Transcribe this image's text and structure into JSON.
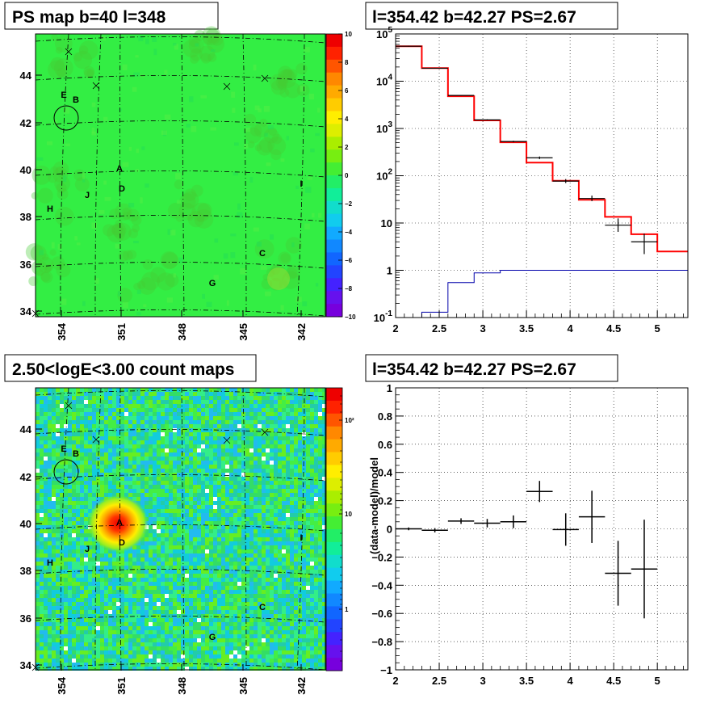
{
  "chart_data": [
    {
      "type": "heatmap",
      "title": "PS map b=40 l=348",
      "x_ticks": [
        "354",
        "351",
        "348",
        "345",
        "342"
      ],
      "y_ticks": [
        "34",
        "36",
        "38",
        "40",
        "42",
        "44"
      ],
      "colorbar": {
        "ticks": [
          "10",
          "8",
          "6",
          "4",
          "2",
          "0",
          "−2",
          "−4",
          "−6",
          "−8",
          "−10"
        ],
        "range": [
          -10,
          10
        ]
      },
      "source_labels": [
        "A",
        "B",
        "C",
        "D",
        "E",
        "G",
        "H",
        "I",
        "J"
      ]
    },
    {
      "type": "line",
      "title": "l=354.42 b=42.27 PS=2.67",
      "y_scale": "log",
      "xlim": [
        2,
        5.35
      ],
      "ylim": [
        0.1,
        100000
      ],
      "x_ticks": [
        "2",
        "2.5",
        "3",
        "3.5",
        "4",
        "4.5",
        "5"
      ],
      "y_ticks": [
        "10^-1",
        "1",
        "10",
        "10^2",
        "10^3",
        "10^4",
        "10^5"
      ],
      "series": [
        {
          "color": "#ff0000",
          "edges": [
            2,
            2.3,
            2.6,
            2.9,
            3.2,
            3.5,
            3.8,
            4.1,
            4.4,
            4.7,
            5.0,
            5.35
          ],
          "values": [
            55000,
            19000,
            4800,
            1480,
            510,
            190,
            78,
            31,
            13.5,
            5.8,
            2.5
          ]
        },
        {
          "color": "#0000aa",
          "edges": [
            2,
            2.3,
            2.6,
            2.9,
            3.2,
            3.5,
            3.8,
            4.1,
            4.4,
            4.7,
            5.0,
            5.35
          ],
          "values": [
            0.1,
            0.13,
            0.55,
            0.88,
            1.0,
            1.0,
            1.0,
            1.0,
            1.0,
            1.0,
            1.0
          ]
        }
      ],
      "data_points": [
        {
          "x": 2.15,
          "xerr": 0.15,
          "y": 55000,
          "ylo": 54000,
          "yhi": 56000
        },
        {
          "x": 2.45,
          "xerr": 0.15,
          "y": 18800,
          "ylo": 18500,
          "yhi": 19200
        },
        {
          "x": 2.75,
          "xerr": 0.15,
          "y": 5000,
          "ylo": 4900,
          "yhi": 5100
        },
        {
          "x": 3.05,
          "xerr": 0.15,
          "y": 1520,
          "ylo": 1480,
          "yhi": 1560
        },
        {
          "x": 3.35,
          "xerr": 0.15,
          "y": 530,
          "ylo": 510,
          "yhi": 550
        },
        {
          "x": 3.65,
          "xerr": 0.15,
          "y": 240,
          "ylo": 225,
          "yhi": 255
        },
        {
          "x": 3.95,
          "xerr": 0.15,
          "y": 77,
          "ylo": 70,
          "yhi": 85
        },
        {
          "x": 4.25,
          "xerr": 0.15,
          "y": 33,
          "ylo": 29,
          "yhi": 38
        },
        {
          "x": 4.55,
          "xerr": 0.15,
          "y": 9,
          "ylo": 6.5,
          "yhi": 12.5
        },
        {
          "x": 4.85,
          "xerr": 0.15,
          "y": 4,
          "ylo": 2.2,
          "yhi": 6
        }
      ]
    },
    {
      "type": "heatmap",
      "title": "2.50<logE<3.00 count maps",
      "x_ticks": [
        "354",
        "351",
        "348",
        "345",
        "342"
      ],
      "y_ticks": [
        "34",
        "36",
        "38",
        "40",
        "42",
        "44"
      ],
      "colorbar": {
        "ticks": [
          "10^2",
          "10",
          "1"
        ],
        "scale": "log"
      },
      "source_labels": [
        "A",
        "B",
        "C",
        "D",
        "E",
        "G",
        "H",
        "I",
        "J"
      ]
    },
    {
      "type": "scatter",
      "title": "l=354.42 b=42.27 PS=2.67",
      "ylabel": "(data-model)/model",
      "xlim": [
        2,
        5.35
      ],
      "ylim": [
        -1,
        1
      ],
      "x_ticks": [
        "2",
        "2.5",
        "3",
        "3.5",
        "4",
        "4.5",
        "5"
      ],
      "y_ticks": [
        "1",
        "0.8",
        "0.6",
        "0.4",
        "0.2",
        "0",
        "−0.2",
        "−0.4",
        "−0.6",
        "−0.8",
        "−1"
      ],
      "points": [
        {
          "x": 2.15,
          "xerr": 0.15,
          "y": 0.0,
          "yerr": 0.01
        },
        {
          "x": 2.45,
          "xerr": 0.15,
          "y": -0.01,
          "yerr": 0.015
        },
        {
          "x": 2.75,
          "xerr": 0.15,
          "y": 0.055,
          "yerr": 0.02
        },
        {
          "x": 3.05,
          "xerr": 0.15,
          "y": 0.04,
          "yerr": 0.03
        },
        {
          "x": 3.35,
          "xerr": 0.15,
          "y": 0.05,
          "yerr": 0.045
        },
        {
          "x": 3.65,
          "xerr": 0.15,
          "y": 0.265,
          "yerr": 0.075
        },
        {
          "x": 3.95,
          "xerr": 0.15,
          "y": -0.005,
          "yerr": 0.115
        },
        {
          "x": 4.25,
          "xerr": 0.15,
          "y": 0.085,
          "yerr": 0.185
        },
        {
          "x": 4.55,
          "xerr": 0.15,
          "y": -0.315,
          "yerr": 0.23
        },
        {
          "x": 4.85,
          "xerr": 0.15,
          "y": -0.285,
          "yerr": 0.35
        }
      ]
    }
  ]
}
